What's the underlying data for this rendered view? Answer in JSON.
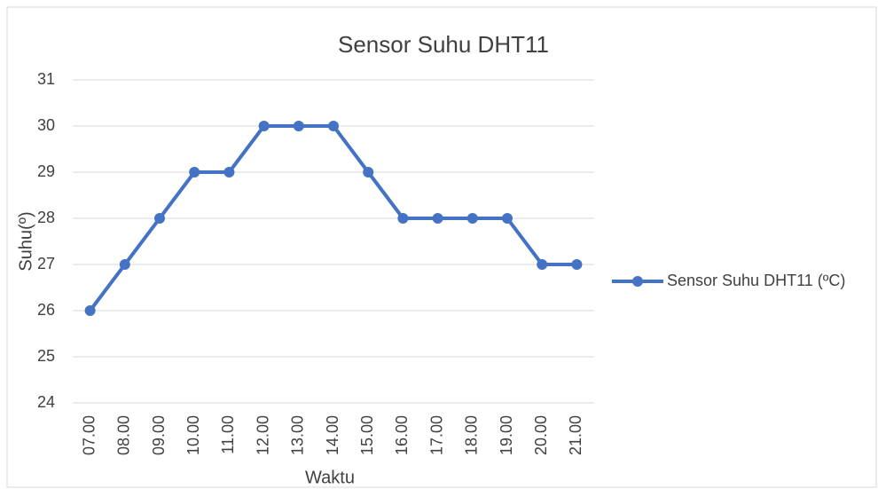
{
  "chart_data": {
    "type": "line",
    "title": "Sensor Suhu DHT11",
    "x_label": "Waktu",
    "y_label": "Suhu(º)",
    "categories": [
      "07.00",
      "08.00",
      "09.00",
      "10.00",
      "11.00",
      "12.00",
      "13.00",
      "14.00",
      "15.00",
      "16.00",
      "17.00",
      "18.00",
      "19.00",
      "20.00",
      "21.00"
    ],
    "series": [
      {
        "name": "Sensor Suhu DHT11 (ºC)",
        "color": "#4472c4",
        "values": [
          26,
          27,
          28,
          29,
          29,
          30,
          30,
          30,
          29,
          28,
          28,
          28,
          28,
          27,
          27
        ]
      }
    ],
    "ylim": [
      24,
      31
    ],
    "yticks": [
      24,
      25,
      26,
      27,
      28,
      29,
      30,
      31
    ],
    "grid": true,
    "legend": "right"
  }
}
